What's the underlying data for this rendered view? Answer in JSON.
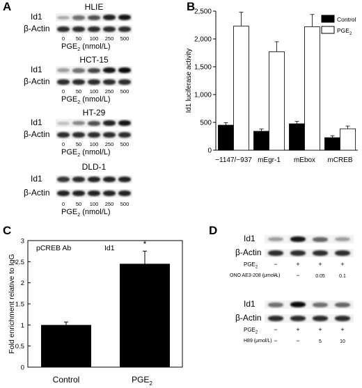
{
  "figure": {
    "panels": {
      "A": {
        "letter": "A",
        "row_label_target": "Id1",
        "row_label_loading": "β-Actin",
        "dose_label_text": "PGE",
        "dose_label_sub": "2",
        "dose_label_unit": " (nmol/L)",
        "doses": [
          "0",
          "50",
          "100",
          "250",
          "500"
        ],
        "blots": [
          {
            "cell_line": "HLIE",
            "id1_intensity": [
              0.3,
              0.55,
              0.7,
              0.9,
              0.95
            ],
            "actin_intensity": [
              0.85,
              0.85,
              0.85,
              0.85,
              0.85
            ]
          },
          {
            "cell_line": "HCT-15",
            "id1_intensity": [
              0.35,
              0.55,
              0.75,
              0.95,
              1.0
            ],
            "actin_intensity": [
              0.85,
              0.85,
              0.85,
              0.85,
              0.85
            ]
          },
          {
            "cell_line": "HT-29",
            "id1_intensity": [
              0.2,
              0.45,
              0.7,
              0.9,
              0.95
            ],
            "actin_intensity": [
              0.85,
              0.85,
              0.85,
              0.85,
              0.85
            ]
          },
          {
            "cell_line": "DLD-1",
            "id1_intensity": [
              0.8,
              0.85,
              0.9,
              0.9,
              0.9
            ],
            "actin_intensity": [
              0.9,
              0.9,
              0.9,
              0.9,
              0.9
            ]
          }
        ]
      },
      "B": {
        "letter": "B",
        "legend_control": "Control",
        "legend_pge_text": "PGE",
        "legend_pge_sub": "2"
      },
      "C": {
        "letter": "C",
        "annot_ab": "pCREB Ab",
        "annot_gene": "Id1",
        "annot_sig": "*",
        "xlabel_control": "Control",
        "xlabel_pge_text": "PGE",
        "xlabel_pge_sub": "2"
      },
      "D": {
        "letter": "D",
        "row_label_target": "Id1",
        "row_label_loading": "β-Actin",
        "pge_label_text": "PGE",
        "pge_label_sub": "2",
        "top": {
          "pge_signs": [
            "−",
            "+",
            "+",
            "+"
          ],
          "inhibitor_label": "ONO AE3-208 (μmol/L)",
          "inhibitor_signs": [
            "−",
            "−"
          ],
          "inhibitor_conc": [
            "0.05",
            "0.1"
          ],
          "id1_intensity": [
            0.35,
            0.95,
            0.6,
            0.35
          ],
          "actin_intensity": [
            0.85,
            0.85,
            0.85,
            0.85
          ]
        },
        "bottom": {
          "pge_signs": [
            "−",
            "+",
            "+",
            "+"
          ],
          "inhibitor_label": "H89 (μmol/L)",
          "inhibitor_signs": [
            "−",
            "−"
          ],
          "inhibitor_conc": [
            "5",
            "10"
          ],
          "id1_intensity": [
            0.55,
            1.0,
            0.55,
            0.6
          ],
          "actin_intensity": [
            0.85,
            0.85,
            0.85,
            0.85
          ]
        }
      }
    }
  },
  "chart_data": [
    {
      "panel": "B",
      "type": "bar",
      "ylabel": "Id1 luciferase activity",
      "xlabel": "",
      "categories": [
        "−1147/−937",
        "mEgr-1",
        "mEbox",
        "mCREB"
      ],
      "series": [
        {
          "name": "Control",
          "color": "#000000",
          "values": [
            450,
            340,
            475,
            225
          ],
          "errors": [
            45,
            40,
            45,
            35
          ]
        },
        {
          "name": "PGE2",
          "color": "#ffffff",
          "values": [
            2230,
            1770,
            2220,
            385
          ],
          "errors": [
            250,
            180,
            220,
            50
          ]
        }
      ],
      "ylim": [
        0,
        2500
      ],
      "yticks": [
        0,
        500,
        1000,
        1500,
        2000,
        2500
      ],
      "ytick_labels": [
        "0",
        "500",
        "1,000",
        "1,500",
        "2,000",
        "2,500"
      ],
      "grid": false,
      "legend": "top-right"
    },
    {
      "panel": "C",
      "type": "bar",
      "ylabel": "Fold enrichment relative to IgG",
      "xlabel": "",
      "categories": [
        "Control",
        "PGE2"
      ],
      "values": [
        1.0,
        2.45
      ],
      "errors": [
        0.07,
        0.3
      ],
      "ylim": [
        0,
        3
      ],
      "yticks": [
        0,
        0.5,
        1,
        1.5,
        2,
        2.5,
        3
      ],
      "ytick_labels": [
        "0",
        "0.5",
        "1",
        "1.5",
        "2",
        "2.5",
        "3"
      ],
      "grid": false
    }
  ]
}
